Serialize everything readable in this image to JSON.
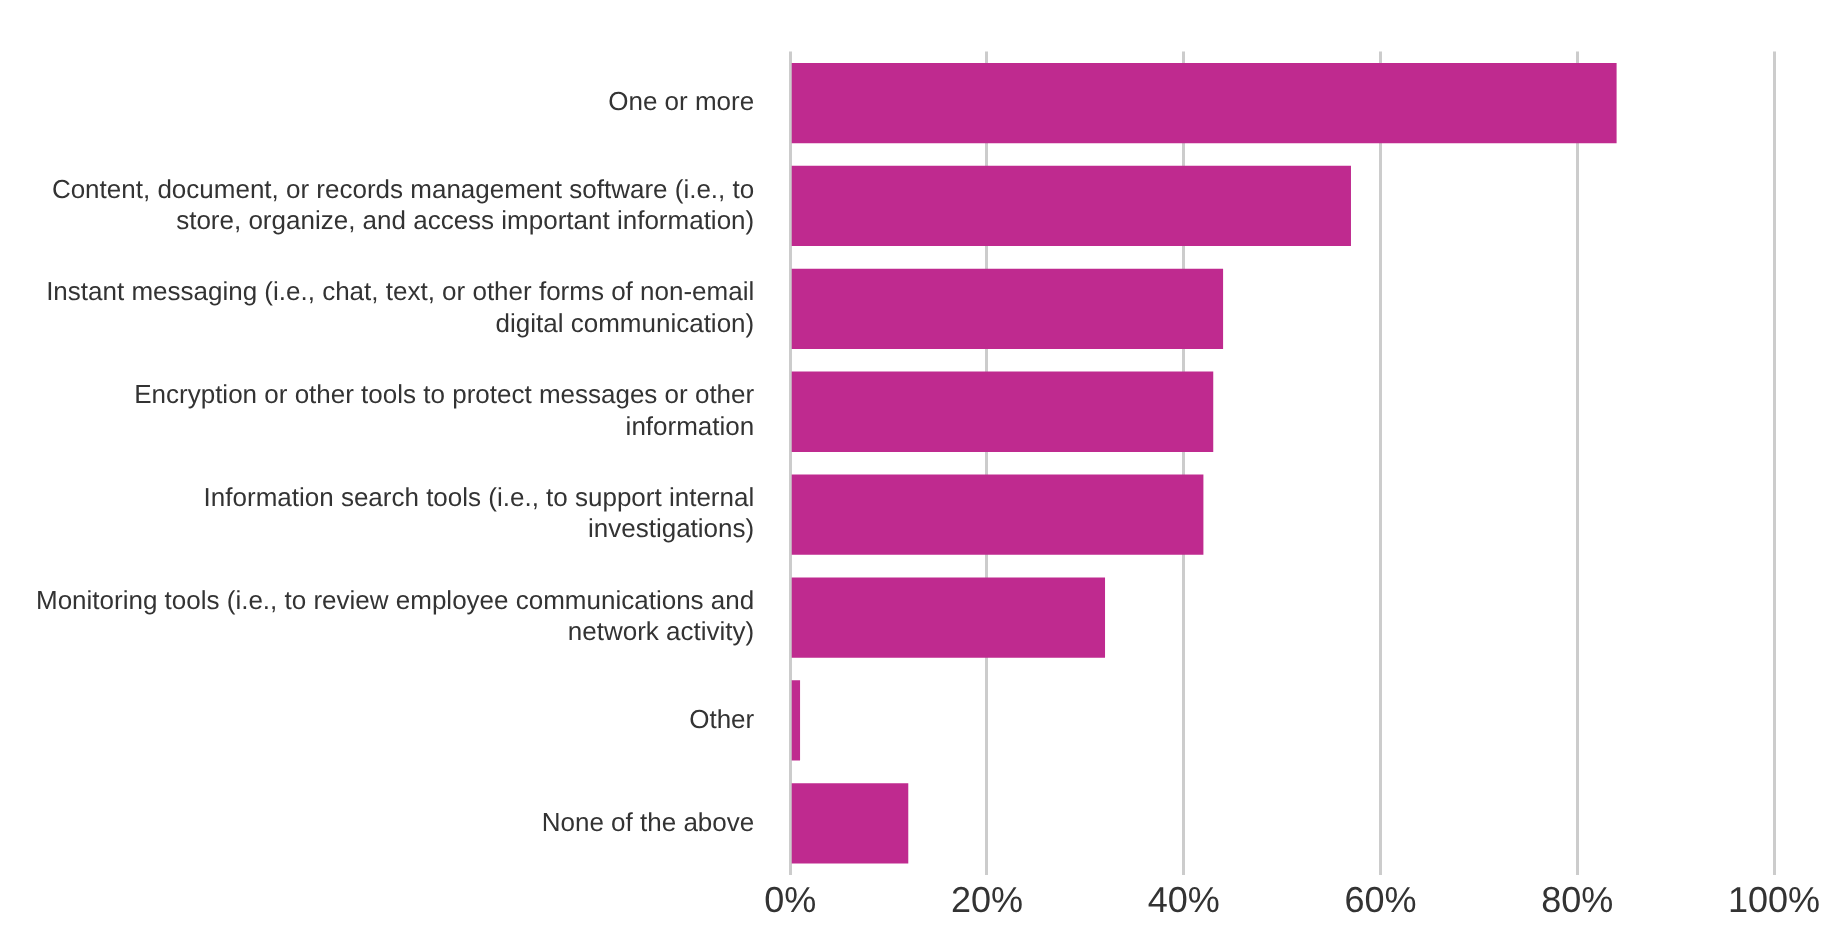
{
  "chart_data": {
    "type": "bar",
    "orientation": "horizontal",
    "categories": [
      "One or more",
      "Content, document, or records management software (i.e., to store, organize, and access important information)",
      "Instant messaging (i.e., chat, text, or other forms of non-email digital communication)",
      "Encryption or other tools to protect messages or other information",
      "Information search tools (i.e., to support internal investigations)",
      "Monitoring tools (i.e., to review employee communications and network activity)",
      "Other",
      "None of the above"
    ],
    "values": [
      84,
      57,
      44,
      43,
      42,
      32,
      1,
      12
    ],
    "color": "#bf2a8f",
    "xlim": [
      0,
      100
    ],
    "xticks": [
      {
        "value": 0,
        "label": "0%"
      },
      {
        "value": 20,
        "label": "20%"
      },
      {
        "value": 40,
        "label": "40%"
      },
      {
        "value": 60,
        "label": "60%"
      },
      {
        "value": 80,
        "label": "80%"
      },
      {
        "value": 100,
        "label": "100%"
      }
    ],
    "grid": "x"
  }
}
